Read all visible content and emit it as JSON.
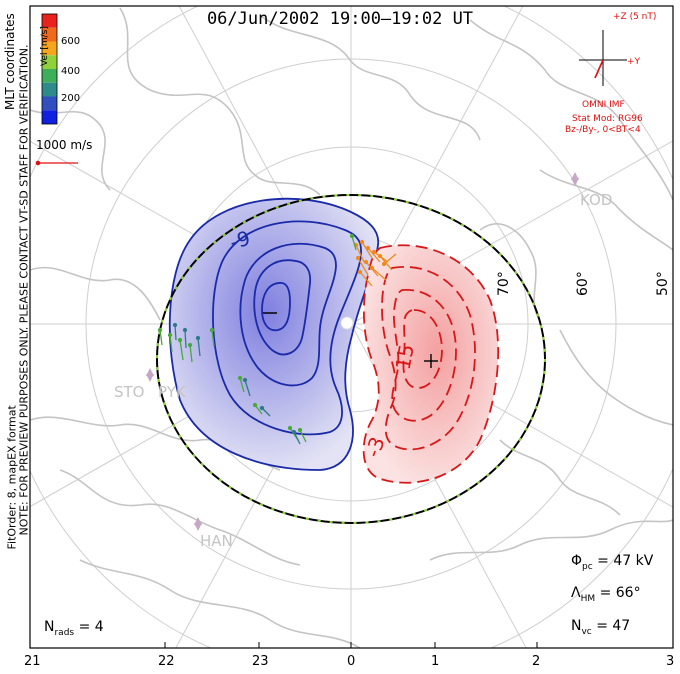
{
  "title": "06/Jun/2002 19:00–19:02 UT",
  "side_note": "NOTE: FOR PREVIEW PURPOSES ONLY. PLEASE CONTACT VT-SD STAFF FOR VERIFICATION.",
  "side_note2": "FitOrder: 8, mapEX format",
  "colorbar": {
    "title": "Vel [m/s]",
    "ticks": [
      "600",
      "400",
      "200"
    ],
    "colors": [
      "#e8231e",
      "#f06a1e",
      "#f5a51e",
      "#8fd13a",
      "#3fae5a",
      "#2f8a8a",
      "#3050c0",
      "#1020e0"
    ]
  },
  "coord_label": "MLT coordinates",
  "ref_vector": "1000 m/s",
  "imf": {
    "scale": "+Z (5 nT)",
    "plus_y": "+Y",
    "source": "OMNI IMF",
    "stat_mod": "Stat Mod: RG96",
    "condition": "Bz-/By-, 0<BT<4"
  },
  "stations": [
    "KOD",
    "STO",
    "PYK",
    "HAN"
  ],
  "lat_labels": [
    "70°",
    "60°",
    "50°"
  ],
  "contour_labels": [
    "-9",
    "15",
    "-3"
  ],
  "mlt_ticks": [
    "21",
    "22",
    "23",
    "0",
    "1",
    "2",
    "3"
  ],
  "stats": {
    "phi_pc": "= 47 kV",
    "lambda_hm": "= 66°",
    "n_vc": "= 47",
    "n_rads": "= 4"
  },
  "colors": {
    "negative_cell": "#1a2aa8",
    "positive_cell": "#d81818",
    "heppner_maynard": "#000000",
    "grid": "#cccccc",
    "land": "#c8c8c8"
  }
}
